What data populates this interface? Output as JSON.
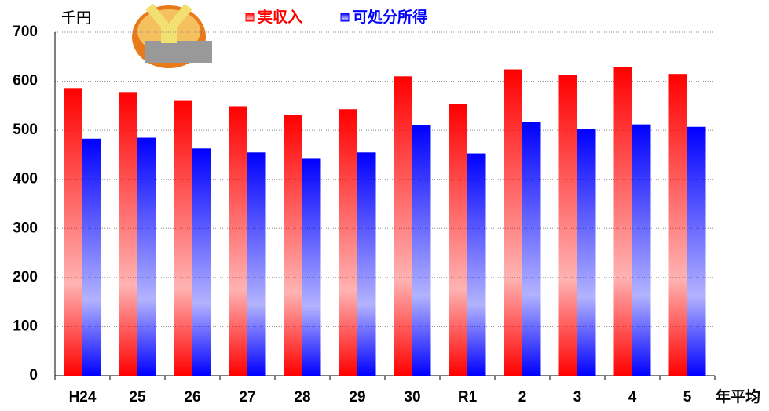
{
  "chart_data": {
    "type": "bar",
    "unit_label": "千円",
    "x_suffix": "年平均",
    "categories": [
      "H24",
      "25",
      "26",
      "27",
      "28",
      "29",
      "30",
      "R1",
      "2",
      "3",
      "4",
      "5"
    ],
    "series": [
      {
        "name": "実収入",
        "color": "#ff0000",
        "values": [
          586,
          578,
          560,
          549,
          531,
          543,
          610,
          553,
          624,
          613,
          629,
          615
        ]
      },
      {
        "name": "可処分所得",
        "color": "#0000ff",
        "values": [
          483,
          485,
          463,
          455,
          442,
          455,
          510,
          453,
          517,
          502,
          512,
          507
        ]
      }
    ],
    "ylim": [
      0,
      700
    ],
    "yticks": [
      0,
      100,
      200,
      300,
      400,
      500,
      600,
      700
    ],
    "grid": true
  }
}
